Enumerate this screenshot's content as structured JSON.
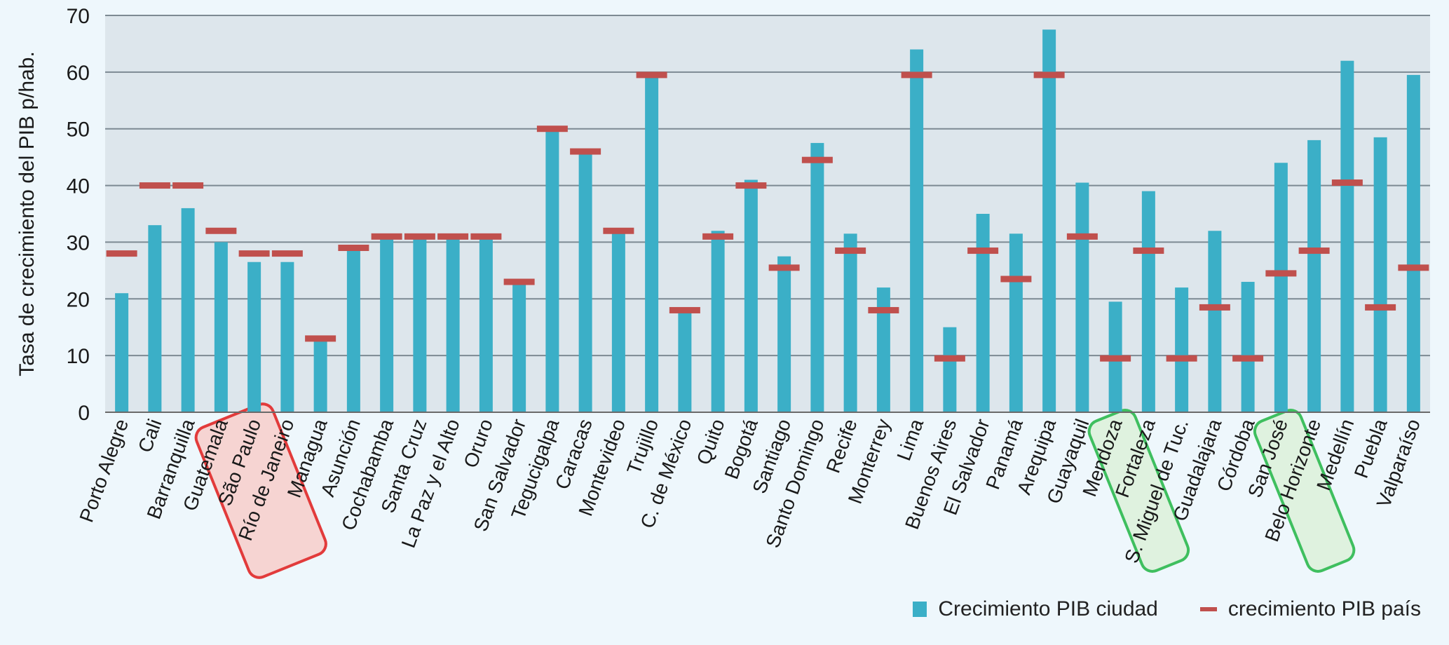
{
  "chart_data": {
    "type": "bar",
    "ylabel": "Tasa de crecimiento del PIB p/hab.",
    "ylim": [
      0,
      70
    ],
    "yticks": [
      0,
      10,
      20,
      30,
      40,
      50,
      60,
      70
    ],
    "grid": true,
    "legend_position": "bottom-right",
    "colors": {
      "city": "#3bafc7",
      "country": "#c0504d",
      "plot_bg": "#dde6ec",
      "page_bg": "#eef7fc",
      "red_box": "#e23b3b",
      "red_box_fill": "#f6d4d2",
      "green_box": "#3fbf5f",
      "green_box_fill": "#dff2df"
    },
    "categories": [
      "Porto Alegre",
      "Cali",
      "Barranquilla",
      "Guatemala",
      "São Paulo",
      "Río de Janeiro",
      "Managua",
      "Asunción",
      "Cochabamba",
      "Santa Cruz",
      "La Paz y el Alto",
      "Oruro",
      "San Salvador",
      "Tegucigalpa",
      "Caracas",
      "Montevideo",
      "Trujillo",
      "C. de México",
      "Quito",
      "Bogotá",
      "Santiago",
      "Santo Domingo",
      "Recife",
      "Monterrey",
      "Lima",
      "Buenos Aires",
      "El Salvador",
      "Panamá",
      "Arequipa",
      "Guayaquil",
      "Mendoza",
      "Fortaleza",
      "S. Miguel de Tuc.",
      "Guadalajara",
      "Córdoba",
      "San José",
      "Belo Horizonte",
      "Medellín",
      "Puebla",
      "Valparaíso"
    ],
    "series": [
      {
        "name": "Crecimiento PIB ciudad",
        "kind": "bar",
        "values": [
          21,
          33,
          36,
          30,
          26.5,
          26.5,
          13,
          28.5,
          31,
          31,
          30.5,
          31,
          23,
          50,
          46,
          32,
          60,
          17.5,
          32,
          41,
          27.5,
          47.5,
          31.5,
          22,
          64,
          15,
          35,
          31.5,
          67.5,
          40.5,
          19.5,
          39,
          22,
          32,
          23,
          44,
          48,
          62,
          48.5,
          59.5
        ]
      },
      {
        "name": "crecimiento PIB país",
        "kind": "marker",
        "values": [
          28,
          40,
          40,
          32,
          28,
          28,
          13,
          29,
          31,
          31,
          31,
          31,
          23,
          50,
          46,
          32,
          59.5,
          18,
          31,
          40,
          25.5,
          44.5,
          28.5,
          18,
          59.5,
          9.5,
          28.5,
          23.5,
          59.5,
          31,
          9.5,
          28.5,
          9.5,
          18.5,
          9.5,
          24.5,
          28.5,
          40.5,
          18.5,
          25.5
        ]
      }
    ],
    "highlights": [
      {
        "color": "red",
        "categories": [
          "São Paulo",
          "Río de Janeiro"
        ]
      },
      {
        "color": "green",
        "categories": [
          "Fortaleza"
        ]
      },
      {
        "color": "green",
        "categories": [
          "Belo Horizonte"
        ]
      }
    ]
  }
}
